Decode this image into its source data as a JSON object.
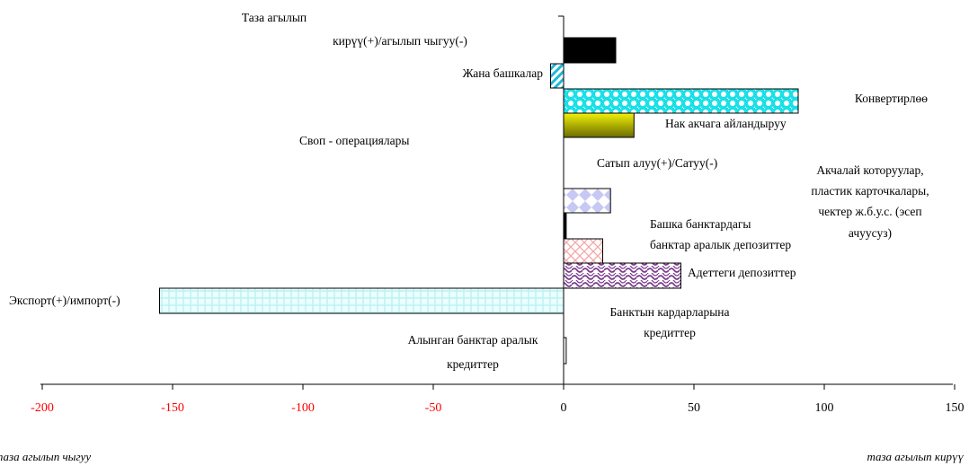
{
  "chart_data": {
    "type": "bar",
    "orientation": "horizontal",
    "xlim": [
      -200,
      150
    ],
    "x_ticks": [
      {
        "value": -200,
        "label": "-200",
        "color": "#ff0000"
      },
      {
        "value": -150,
        "label": "-150",
        "color": "#ff0000"
      },
      {
        "value": -100,
        "label": "-100",
        "color": "#ff0000"
      },
      {
        "value": -50,
        "label": "-50",
        "color": "#ff0000"
      },
      {
        "value": 0,
        "label": "0",
        "color": "#000000"
      },
      {
        "value": 50,
        "label": "50",
        "color": "#000000"
      },
      {
        "value": 100,
        "label": "100",
        "color": "#000000"
      },
      {
        "value": 150,
        "label": "150",
        "color": "#000000"
      }
    ],
    "footer_left": "таза агылып чыгуу",
    "footer_right": "таза агылып кирүү",
    "bars": [
      {
        "category": "Таза агылып кирүү(+)/агылып чыгуу(-)",
        "value": 20,
        "pattern": "solid-black"
      },
      {
        "category": "Жана башкалар",
        "value": -5,
        "pattern": "diagonal-cyan"
      },
      {
        "category": "Конвертирлөө",
        "value": 90,
        "pattern": "cyan-dots"
      },
      {
        "category": "Нак акчага айландыруу",
        "value": 27,
        "pattern": "olive-yellow"
      },
      {
        "category": "Акчалай которуулар, пластик карточкалары, чектер ж.б.у.с. (эсеп ачуусуз)",
        "value": 18,
        "pattern": "lavender-diamonds"
      },
      {
        "category": "Башка банктардагы",
        "value": 1,
        "pattern": "solid-black"
      },
      {
        "category": "банктар аралык депозиттер",
        "value": 15,
        "pattern": "pink-lattice"
      },
      {
        "category": "Адеттеги депозиттер",
        "value": 45,
        "pattern": "purple-wave"
      },
      {
        "category": "Экспорт(+)/импорт(-)",
        "value": -155,
        "pattern": "lightblue-grid"
      },
      {
        "category": "Алынган банктар аралык кредиттер",
        "value": 1,
        "pattern": "white"
      }
    ],
    "labels": {
      "net_flow_line1": "Таза агылып",
      "net_flow_line2": "кирүү(+)/агылып чыгуу(-)",
      "others": "Жана башкалар",
      "conversion": "Конвертирлөө",
      "cash_conversion": "Нак акчага айландыруу",
      "swap_ops": "Своп - операциялары",
      "buy_sell": "Сатып алуу(+)/Сатуу(-)",
      "transfers_line1": "Акчалай которуулар,",
      "transfers_line2": "пластик карточкалары,",
      "transfers_line3": "чектер ж.б.у.с. (эсеп",
      "transfers_line4": "ачуусуз)",
      "other_banks_line1": "Башка банктардагы",
      "other_banks_line2": "банктар аралык депозиттер",
      "regular_deposits": "Адеттеги депозиттер",
      "export_import": "Экспорт(+)/импорт(-)",
      "client_loans_line1": "Банктын кардарларына",
      "client_loans_line2": "кредиттер",
      "interbank_loans_line1": "Алынган банктар аралык",
      "interbank_loans_line2": "кредиттер"
    }
  }
}
